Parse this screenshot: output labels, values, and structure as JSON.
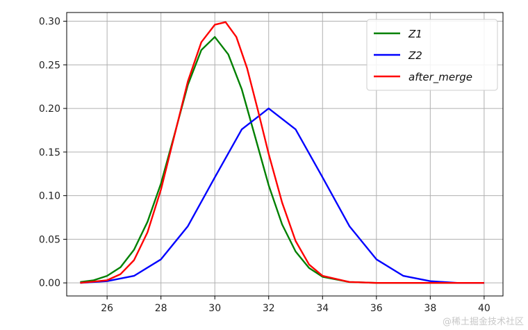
{
  "chart_data": {
    "type": "line",
    "title": "",
    "xlabel": "",
    "ylabel": "",
    "xlim": [
      24.5,
      40.7
    ],
    "ylim": [
      -0.015,
      0.31
    ],
    "xticks": [
      26,
      28,
      30,
      32,
      34,
      36,
      38,
      40
    ],
    "xtick_labels": [
      "26",
      "28",
      "30",
      "32",
      "34",
      "36",
      "38",
      "40"
    ],
    "yticks": [
      0.0,
      0.05,
      0.1,
      0.15,
      0.2,
      0.25,
      0.3
    ],
    "ytick_labels": [
      "0.00",
      "0.05",
      "0.10",
      "0.15",
      "0.20",
      "0.25",
      "0.30"
    ],
    "grid": true,
    "legend_position": "top-right",
    "series": [
      {
        "name": "Z1",
        "color": "#008000",
        "points": [
          [
            25,
            0.001
          ],
          [
            25.5,
            0.003
          ],
          [
            26,
            0.008
          ],
          [
            26.5,
            0.018
          ],
          [
            27,
            0.038
          ],
          [
            27.5,
            0.07
          ],
          [
            28,
            0.114
          ],
          [
            28.5,
            0.17
          ],
          [
            29,
            0.227
          ],
          [
            29.5,
            0.267
          ],
          [
            30,
            0.282
          ],
          [
            30.5,
            0.262
          ],
          [
            31,
            0.222
          ],
          [
            31.5,
            0.167
          ],
          [
            32,
            0.112
          ],
          [
            32.5,
            0.067
          ],
          [
            33,
            0.036
          ],
          [
            33.5,
            0.017
          ],
          [
            34,
            0.007
          ],
          [
            35,
            0.001
          ],
          [
            36,
            0.0
          ],
          [
            38,
            0.0
          ],
          [
            40,
            0.0
          ]
        ]
      },
      {
        "name": "Z2",
        "color": "#0000ff",
        "points": [
          [
            25,
            0.0
          ],
          [
            26,
            0.002
          ],
          [
            27,
            0.008
          ],
          [
            28,
            0.027
          ],
          [
            29,
            0.065
          ],
          [
            30,
            0.121
          ],
          [
            31,
            0.176
          ],
          [
            32,
            0.2
          ],
          [
            33,
            0.176
          ],
          [
            34,
            0.121
          ],
          [
            35,
            0.065
          ],
          [
            36,
            0.027
          ],
          [
            37,
            0.008
          ],
          [
            38,
            0.002
          ],
          [
            39,
            0.0
          ],
          [
            40,
            0.0
          ]
        ]
      },
      {
        "name": "after_merge",
        "color": "#ff0000",
        "points": [
          [
            25,
            0.0
          ],
          [
            26,
            0.003
          ],
          [
            26.5,
            0.01
          ],
          [
            27,
            0.026
          ],
          [
            27.5,
            0.058
          ],
          [
            28,
            0.107
          ],
          [
            28.5,
            0.169
          ],
          [
            29,
            0.231
          ],
          [
            29.5,
            0.276
          ],
          [
            30,
            0.296
          ],
          [
            30.4,
            0.299
          ],
          [
            30.8,
            0.282
          ],
          [
            31.2,
            0.246
          ],
          [
            31.6,
            0.198
          ],
          [
            32,
            0.148
          ],
          [
            32.5,
            0.092
          ],
          [
            33,
            0.048
          ],
          [
            33.5,
            0.021
          ],
          [
            34,
            0.008
          ],
          [
            35,
            0.001
          ],
          [
            36,
            0.0
          ],
          [
            38,
            0.0
          ],
          [
            40,
            0.0
          ]
        ]
      }
    ]
  },
  "watermark": "@稀土掘金技术社区"
}
